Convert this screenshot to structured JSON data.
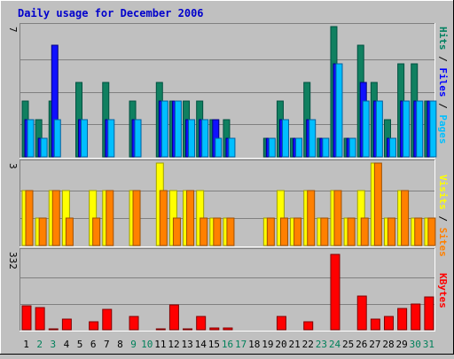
{
  "chart_data": {
    "type": "bar",
    "title": "Daily usage for December 2006",
    "days": [
      "1",
      "2",
      "3",
      "4",
      "5",
      "6",
      "7",
      "8",
      "9",
      "10",
      "11",
      "12",
      "13",
      "14",
      "15",
      "16",
      "17",
      "18",
      "19",
      "20",
      "21",
      "22",
      "23",
      "24",
      "25",
      "26",
      "27",
      "28",
      "29",
      "30",
      "31"
    ],
    "weekend_days": [
      "2",
      "3",
      "9",
      "10",
      "16",
      "17",
      "23",
      "24",
      "30",
      "31"
    ],
    "panels": [
      {
        "id": "hits_files_pages",
        "ymax_label": "7",
        "ymax": 7,
        "axis_label_parts": [
          "Pages",
          "Files",
          "Hits"
        ],
        "axis_label_colors": [
          "#00bfff",
          "#0000ff",
          "#008060"
        ],
        "series": [
          {
            "name": "Hits",
            "color": "#108060",
            "values": [
              3,
              2,
              3,
              0,
              4,
              0,
              4,
              0,
              3,
              0,
              4,
              3,
              3,
              3,
              2,
              2,
              0,
              0,
              1,
              3,
              1,
              4,
              1,
              7,
              1,
              6,
              4,
              2,
              5,
              5,
              3
            ]
          },
          {
            "name": "Files",
            "color": "#1010ff",
            "values": [
              2,
              1,
              6,
              0,
              2,
              0,
              2,
              0,
              2,
              0,
              3,
              3,
              2,
              2,
              2,
              1,
              0,
              0,
              1,
              2,
              1,
              2,
              1,
              5,
              1,
              4,
              3,
              1,
              3,
              3,
              3
            ]
          },
          {
            "name": "Pages",
            "color": "#00bfff",
            "values": [
              2,
              1,
              2,
              0,
              2,
              0,
              2,
              0,
              2,
              0,
              3,
              3,
              2,
              2,
              1,
              1,
              0,
              0,
              1,
              2,
              1,
              2,
              1,
              5,
              1,
              3,
              3,
              1,
              3,
              3,
              3
            ]
          }
        ]
      },
      {
        "id": "visits_sites",
        "ymax_label": "3",
        "ymax": 3,
        "axis_label_parts": [
          "Sites",
          "Visits"
        ],
        "axis_label_colors": [
          "#ff8000",
          "#ffff00"
        ],
        "series": [
          {
            "name": "Visits",
            "color": "#ffff00",
            "values": [
              2,
              1,
              2,
              2,
              0,
              2,
              2,
              0,
              2,
              0,
              3,
              2,
              2,
              2,
              1,
              1,
              0,
              0,
              1,
              2,
              1,
              2,
              1,
              2,
              1,
              2,
              3,
              1,
              2,
              1,
              1
            ]
          },
          {
            "name": "Sites",
            "color": "#ff8000",
            "values": [
              2,
              1,
              2,
              1,
              0,
              1,
              2,
              0,
              2,
              0,
              2,
              1,
              2,
              1,
              1,
              1,
              0,
              0,
              1,
              1,
              1,
              2,
              1,
              2,
              1,
              1,
              3,
              1,
              2,
              1,
              1
            ]
          }
        ]
      },
      {
        "id": "kbytes",
        "ymax_label": "332",
        "ymax": 332,
        "axis_label_parts": [
          "KBytes"
        ],
        "axis_label_colors": [
          "#ff0000"
        ],
        "series": [
          {
            "name": "KBytes",
            "color": "#ff0000",
            "values": [
              100,
              95,
              5,
              45,
              0,
              35,
              85,
              0,
              55,
              0,
              5,
              105,
              5,
              55,
              8,
              6,
              0,
              0,
              0,
              55,
              0,
              35,
              0,
              320,
              0,
              145,
              45,
              55,
              90,
              110,
              140
            ]
          }
        ]
      }
    ]
  }
}
